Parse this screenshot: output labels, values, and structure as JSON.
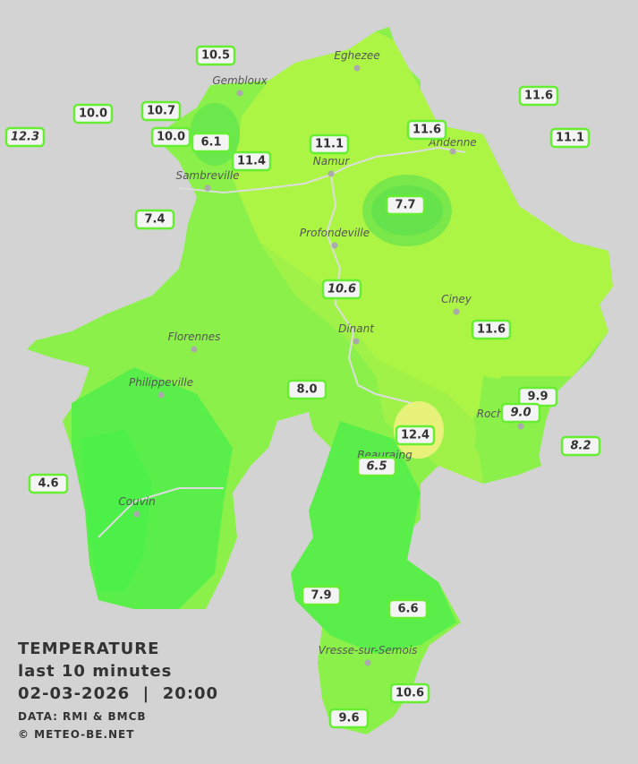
{
  "title": {
    "heading": "TEMPERATURE",
    "period": "last 10 minutes",
    "datetime": "02-03-2026  |  20:00",
    "source": "DATA: RMI & BMCB",
    "copyright": "© METEO-BE.NET"
  },
  "cities": [
    "Eghezee",
    "Gembloux",
    "Andenne",
    "Namur",
    "Sambreville",
    "Profondeville",
    "Ciney",
    "Dinant",
    "Florennes",
    "Philippeville",
    "Rochefort",
    "Beauraing",
    "Couvin",
    "Vresse-sur-Semois"
  ],
  "stations": [
    {
      "label": "10.5",
      "italic": false
    },
    {
      "label": "10.0",
      "italic": false
    },
    {
      "label": "10.7",
      "italic": false
    },
    {
      "label": "12.3",
      "italic": true
    },
    {
      "label": "10.0",
      "italic": false
    },
    {
      "label": "6.1",
      "italic": false
    },
    {
      "label": "11.4",
      "italic": false
    },
    {
      "label": "11.1",
      "italic": false
    },
    {
      "label": "11.6",
      "italic": false
    },
    {
      "label": "11.6",
      "italic": false
    },
    {
      "label": "11.1",
      "italic": false
    },
    {
      "label": "7.7",
      "italic": false
    },
    {
      "label": "7.4",
      "italic": false
    },
    {
      "label": "10.6",
      "italic": true
    },
    {
      "label": "11.6",
      "italic": false
    },
    {
      "label": "8.0",
      "italic": false
    },
    {
      "label": "9.9",
      "italic": false
    },
    {
      "label": "9.0",
      "italic": true
    },
    {
      "label": "8.2",
      "italic": true
    },
    {
      "label": "12.4",
      "italic": false
    },
    {
      "label": "6.5",
      "italic": true
    },
    {
      "label": "4.6",
      "italic": false
    },
    {
      "label": "7.9",
      "italic": false
    },
    {
      "label": "6.6",
      "italic": false
    },
    {
      "label": "10.6",
      "italic": false
    },
    {
      "label": "9.6",
      "italic": false
    }
  ]
}
